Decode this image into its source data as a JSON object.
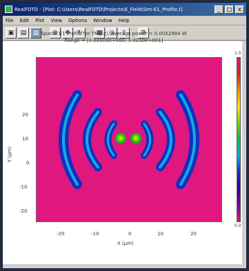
{
  "window": {
    "title": "RealFDTD - [Plot: C:\\Users\\RealFDTD\\Projects\\E_Field\\Sim-E1_Profile.t]",
    "min": "_",
    "max": "□",
    "close": "x"
  },
  "menu": [
    "File",
    "Edit",
    "Plot",
    "View",
    "Options",
    "Window",
    "Help"
  ],
  "toolbar": [
    {
      "icon": "open-icon",
      "glyph": "▣"
    },
    {
      "icon": "save-icon",
      "glyph": "▤"
    },
    {
      "icon": "print-icon",
      "glyph": "▥"
    },
    {
      "icon": "zoom-icon",
      "glyph": "⊕"
    },
    {
      "icon": "pan-icon",
      "glyph": "✥"
    },
    {
      "icon": "rotate-icon",
      "glyph": "↻"
    },
    {
      "icon": "grid-icon",
      "glyph": "▦"
    },
    {
      "icon": "contour-icon",
      "glyph": "◎"
    },
    {
      "icon": "export-icon",
      "glyph": "⇪"
    },
    {
      "icon": "settings-icon",
      "glyph": "⚙"
    }
  ],
  "plot": {
    "title_line1": "Spatial E1 Profile for TM(Ez), Average power = 0.0052984 W",
    "title_line2": "Range = [1.02000e+000, 1.0230e+001]",
    "xlabel": "X (μm)",
    "ylabel": "Y (μm)",
    "xticks": [
      "-20",
      "-10",
      "0",
      "10",
      "20"
    ],
    "yticks": [
      "20",
      "10",
      "0",
      "-10",
      "-20"
    ],
    "colorbar_top": "1.0",
    "colorbar_bottom": "0.0"
  }
}
